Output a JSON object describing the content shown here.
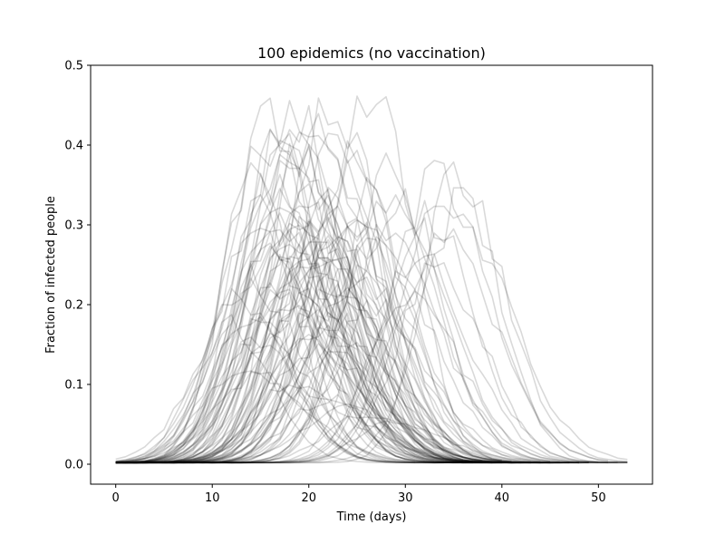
{
  "chart_data": {
    "type": "line",
    "title": "100 epidemics (no vaccination)",
    "xlabel": "Time (days)",
    "ylabel": "Fraction of infected people",
    "xlim": [
      -2.6,
      55.6
    ],
    "ylim": [
      -0.025,
      0.5
    ],
    "xticks": [
      0,
      10,
      20,
      30,
      40,
      50
    ],
    "yticks": [
      0.0,
      0.1,
      0.2,
      0.3,
      0.4,
      0.5
    ],
    "xtick_labels": [
      "0",
      "10",
      "20",
      "30",
      "40",
      "50"
    ],
    "ytick_labels": [
      "0.0",
      "0.1",
      "0.2",
      "0.3",
      "0.4",
      "0.5"
    ],
    "line_color": "#000000",
    "grid": false,
    "series_count": 100,
    "series_peaks": [
      [
        16,
        0.43
      ],
      [
        17,
        0.42
      ],
      [
        18,
        0.43
      ],
      [
        19,
        0.43
      ],
      [
        20,
        0.42
      ],
      [
        15,
        0.4
      ],
      [
        17,
        0.38
      ],
      [
        18,
        0.4
      ],
      [
        19,
        0.39
      ],
      [
        21,
        0.41
      ],
      [
        14,
        0.36
      ],
      [
        16,
        0.35
      ],
      [
        17,
        0.34
      ],
      [
        18,
        0.36
      ],
      [
        19,
        0.33
      ],
      [
        20,
        0.35
      ],
      [
        21,
        0.34
      ],
      [
        22,
        0.45
      ],
      [
        23,
        0.4
      ],
      [
        24,
        0.37
      ],
      [
        15,
        0.31
      ],
      [
        16,
        0.3
      ],
      [
        17,
        0.32
      ],
      [
        18,
        0.3
      ],
      [
        19,
        0.31
      ],
      [
        20,
        0.29
      ],
      [
        21,
        0.3
      ],
      [
        22,
        0.32
      ],
      [
        23,
        0.31
      ],
      [
        24,
        0.3
      ],
      [
        15,
        0.28
      ],
      [
        16,
        0.27
      ],
      [
        17,
        0.29
      ],
      [
        18,
        0.28
      ],
      [
        19,
        0.27
      ],
      [
        20,
        0.28
      ],
      [
        21,
        0.29
      ],
      [
        22,
        0.27
      ],
      [
        23,
        0.28
      ],
      [
        25,
        0.3
      ],
      [
        16,
        0.25
      ],
      [
        17,
        0.24
      ],
      [
        18,
        0.26
      ],
      [
        19,
        0.25
      ],
      [
        20,
        0.24
      ],
      [
        21,
        0.25
      ],
      [
        22,
        0.26
      ],
      [
        23,
        0.24
      ],
      [
        24,
        0.25
      ],
      [
        26,
        0.27
      ],
      [
        14,
        0.23
      ],
      [
        15,
        0.22
      ],
      [
        17,
        0.21
      ],
      [
        18,
        0.22
      ],
      [
        19,
        0.2
      ],
      [
        20,
        0.21
      ],
      [
        22,
        0.22
      ],
      [
        23,
        0.2
      ],
      [
        25,
        0.23
      ],
      [
        27,
        0.26
      ],
      [
        13,
        0.2
      ],
      [
        14,
        0.19
      ],
      [
        16,
        0.18
      ],
      [
        18,
        0.19
      ],
      [
        20,
        0.18
      ],
      [
        21,
        0.17
      ],
      [
        23,
        0.18
      ],
      [
        24,
        0.19
      ],
      [
        26,
        0.2
      ],
      [
        28,
        0.32
      ],
      [
        12,
        0.17
      ],
      [
        14,
        0.16
      ],
      [
        16,
        0.15
      ],
      [
        19,
        0.15
      ],
      [
        21,
        0.14
      ],
      [
        23,
        0.13
      ],
      [
        25,
        0.14
      ],
      [
        27,
        0.47
      ],
      [
        28,
        0.36
      ],
      [
        29,
        0.33
      ],
      [
        13,
        0.12
      ],
      [
        15,
        0.11
      ],
      [
        18,
        0.1
      ],
      [
        20,
        0.09
      ],
      [
        22,
        0.08
      ],
      [
        24,
        0.07
      ],
      [
        26,
        0.06
      ],
      [
        24,
        0.35
      ],
      [
        26,
        0.33
      ],
      [
        27,
        0.29
      ],
      [
        33,
        0.35
      ],
      [
        34,
        0.34
      ],
      [
        35,
        0.36
      ],
      [
        36,
        0.33
      ],
      [
        32,
        0.31
      ],
      [
        34,
        0.28
      ],
      [
        31,
        0.26
      ],
      [
        33,
        0.24
      ],
      [
        28,
        0.05
      ],
      [
        30,
        0.21
      ]
    ]
  }
}
